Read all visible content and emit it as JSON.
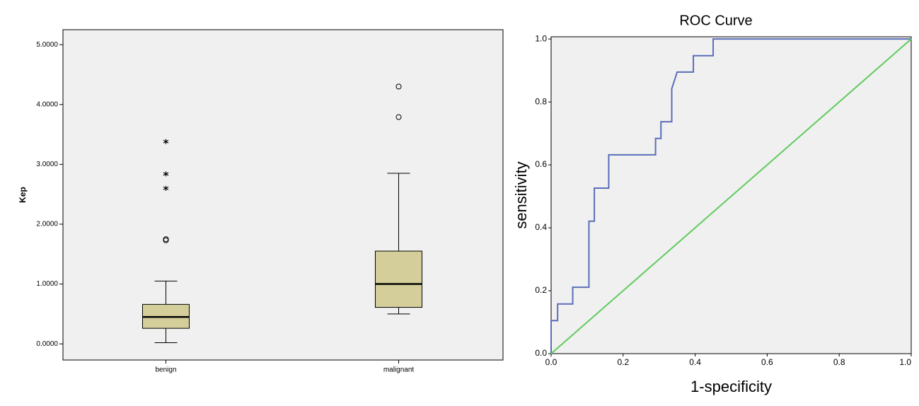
{
  "chart_data": [
    {
      "type": "box",
      "y_label": "Kep",
      "categories": [
        "benign",
        "malignant"
      ],
      "color": "#d4cf9a",
      "background": "#f0f0f0",
      "stats": [
        {
          "min": 0.02,
          "q1": 0.26,
          "median": 0.45,
          "q3": 0.66,
          "max": 1.05,
          "outliers": [
            1.73,
            1.75
          ],
          "extremes": [
            2.6,
            2.84,
            3.38
          ]
        },
        {
          "min": 0.5,
          "q1": 0.61,
          "median": 1.0,
          "q3": 1.55,
          "max": 2.85,
          "outliers": [
            3.79,
            4.3
          ],
          "extremes": []
        }
      ],
      "ylim": [
        -0.27,
        5.25
      ],
      "yticks": [
        {
          "value": 0,
          "label": "0.0000"
        },
        {
          "value": 1,
          "label": "1.0000"
        },
        {
          "value": 2,
          "label": "2.0000"
        },
        {
          "value": 3,
          "label": "3.0000"
        },
        {
          "value": 4,
          "label": "4.0000"
        },
        {
          "value": 5,
          "label": "5.0000"
        }
      ]
    },
    {
      "type": "line",
      "title": "ROC Curve",
      "x_label": "1-specificity",
      "y_label": "sensitivity",
      "background": "#f0f0f0",
      "series": [
        {
          "color": "#5a6eb8",
          "x": [
            0,
            0,
            0.018,
            0.018,
            0.06,
            0.06,
            0.105,
            0.105,
            0.12,
            0.12,
            0.16,
            0.16,
            0.29,
            0.29,
            0.305,
            0.305,
            0.335,
            0.335,
            0.35,
            0.395,
            0.395,
            0.45,
            0.45,
            1
          ],
          "y": [
            0,
            0.105,
            0.105,
            0.158,
            0.158,
            0.211,
            0.211,
            0.421,
            0.421,
            0.526,
            0.526,
            0.632,
            0.632,
            0.684,
            0.684,
            0.737,
            0.737,
            0.842,
            0.895,
            0.895,
            0.947,
            0.947,
            1,
            1
          ]
        },
        {
          "color": "#5ecb5e",
          "x": [
            0,
            1
          ],
          "y": [
            0,
            1
          ]
        }
      ],
      "xlim": [
        0,
        1
      ],
      "ylim": [
        0,
        1.007
      ],
      "xticks": [
        {
          "value": 0,
          "label": "0.0"
        },
        0.2,
        0.4,
        0.6,
        0.8,
        {
          "value": 1,
          "label": "1.0"
        }
      ],
      "yticks": [
        {
          "value": 0,
          "label": "0.0"
        },
        0.2,
        0.4,
        0.6,
        0.8,
        {
          "value": 1,
          "label": "1.0"
        }
      ]
    }
  ]
}
